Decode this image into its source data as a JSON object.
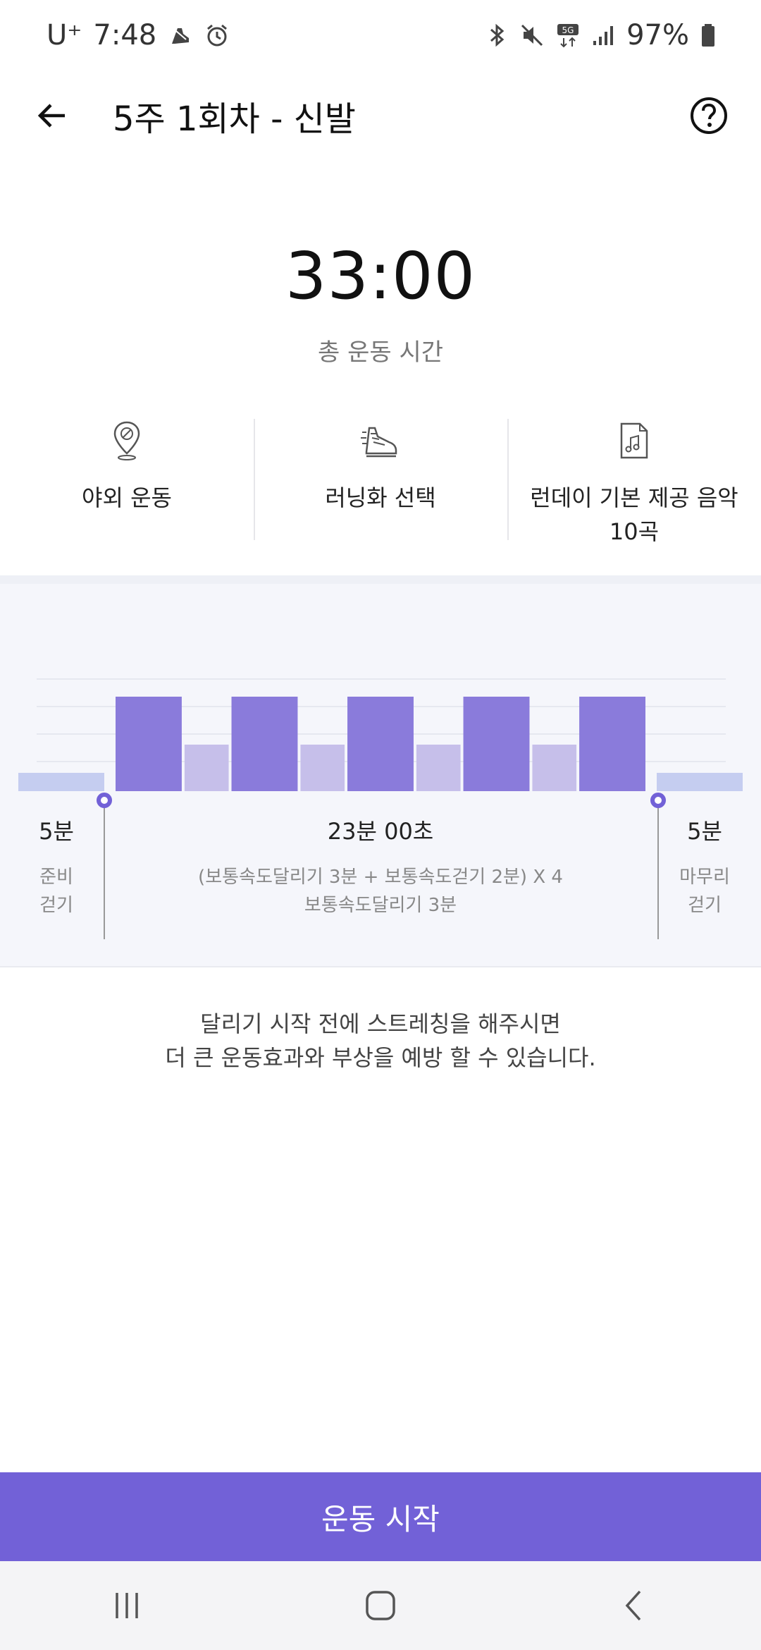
{
  "status_bar": {
    "carrier": "U⁺",
    "time": "7:48",
    "battery": "97%",
    "icons_left": [
      "running-shoe-icon",
      "alarm-icon"
    ],
    "icons_right": [
      "bluetooth-icon",
      "mute-icon",
      "5g-icon",
      "signal-icon",
      "battery-icon"
    ]
  },
  "app_bar": {
    "title": "5주 1회차 - 신발"
  },
  "summary": {
    "total_time": "33:00",
    "total_label": "총 운동 시간"
  },
  "options": [
    {
      "icon": "location-pin-icon",
      "label": "야외 운동"
    },
    {
      "icon": "running-shoe-icon",
      "label": "러닝화 선택"
    },
    {
      "icon": "music-file-icon",
      "label_line1": "런데이 기본 제공 음악",
      "label_line2": "10곡"
    }
  ],
  "chart_data": {
    "type": "bar",
    "colors": {
      "warmup": "#c5cdf0",
      "run": "#8a7bdb",
      "walk": "#c6bfea",
      "marker": "#7261d7"
    },
    "segments": [
      {
        "kind": "warmup",
        "minutes": 5
      },
      {
        "kind": "run",
        "minutes": 3
      },
      {
        "kind": "walk",
        "minutes": 2
      },
      {
        "kind": "run",
        "minutes": 3
      },
      {
        "kind": "walk",
        "minutes": 2
      },
      {
        "kind": "run",
        "minutes": 3
      },
      {
        "kind": "walk",
        "minutes": 2
      },
      {
        "kind": "run",
        "minutes": 3
      },
      {
        "kind": "walk",
        "minutes": 2
      },
      {
        "kind": "run",
        "minutes": 3
      },
      {
        "kind": "cooldown",
        "minutes": 5
      }
    ],
    "labels": {
      "warmup_time": "5분",
      "warmup_name_line1": "준비",
      "warmup_name_line2": "걷기",
      "main_time": "23분 00초",
      "main_desc_line1": "(보통속도달리기 3분 + 보통속도걷기 2분) X 4",
      "main_desc_line2": "보통속도달리기 3분",
      "cooldown_time": "5분",
      "cooldown_name_line1": "마무리",
      "cooldown_name_line2": "걷기"
    }
  },
  "tip": {
    "line1": "달리기 시작 전에 스트레칭을 해주시면",
    "line2": "더 큰 운동효과와 부상을 예방 할 수 있습니다."
  },
  "start_button": {
    "label": "운동 시작"
  },
  "nav_bar": {
    "icons": [
      "recent-apps-icon",
      "home-icon",
      "back-nav-icon"
    ]
  }
}
